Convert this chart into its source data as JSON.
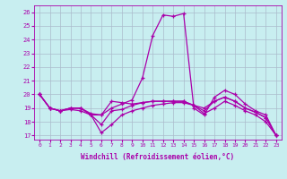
{
  "xlabel": "Windchill (Refroidissement éolien,°C)",
  "background_color": "#c8eef0",
  "line_color": "#aa00aa",
  "grid_color": "#aabbcc",
  "xlim": [
    -0.5,
    23.5
  ],
  "ylim": [
    16.7,
    26.5
  ],
  "yticks": [
    17,
    18,
    19,
    20,
    21,
    22,
    23,
    24,
    25,
    26
  ],
  "xticks": [
    0,
    1,
    2,
    3,
    4,
    5,
    6,
    7,
    8,
    9,
    10,
    11,
    12,
    13,
    14,
    15,
    16,
    17,
    18,
    19,
    20,
    21,
    22,
    23
  ],
  "curves": [
    [
      20.0,
      19.0,
      18.8,
      19.0,
      19.0,
      18.5,
      18.5,
      19.0,
      19.3,
      19.6,
      21.2,
      24.3,
      25.8,
      25.7,
      25.9,
      19.0,
      18.5,
      19.8,
      20.3,
      20.0,
      19.3,
      18.8,
      18.5,
      17.0
    ],
    [
      20.0,
      19.0,
      18.8,
      19.0,
      19.0,
      18.5,
      17.8,
      18.8,
      18.9,
      19.2,
      19.4,
      19.5,
      19.5,
      19.5,
      19.5,
      19.2,
      18.8,
      19.5,
      19.8,
      19.5,
      19.0,
      18.7,
      18.3,
      17.0
    ],
    [
      20.0,
      19.0,
      18.8,
      19.0,
      19.0,
      18.6,
      18.5,
      19.5,
      19.4,
      19.3,
      19.4,
      19.5,
      19.5,
      19.5,
      19.5,
      19.2,
      19.0,
      19.5,
      19.8,
      19.5,
      19.0,
      18.7,
      18.3,
      17.0
    ],
    [
      20.0,
      19.0,
      18.8,
      18.9,
      18.8,
      18.5,
      17.2,
      17.8,
      18.5,
      18.8,
      19.0,
      19.2,
      19.3,
      19.4,
      19.4,
      19.2,
      18.6,
      19.0,
      19.5,
      19.2,
      18.8,
      18.5,
      18.0,
      17.0
    ]
  ]
}
